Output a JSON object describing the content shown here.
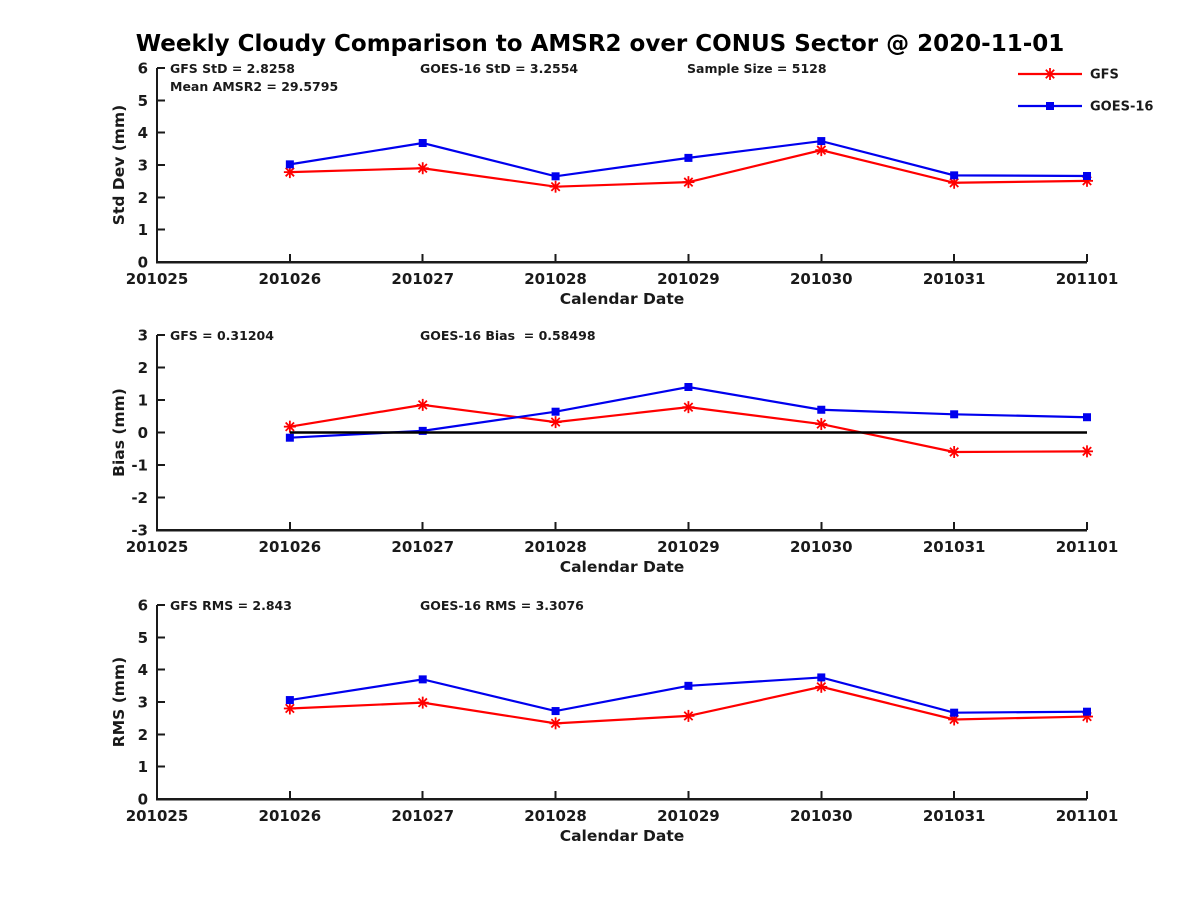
{
  "title": "Weekly Cloudy Comparison to AMSR2 over CONUS Sector @ 2020-11-01",
  "colors": {
    "gfs": "#ff0000",
    "goes16": "#0000ee",
    "axis": "#1a1a1a",
    "zero_line": "#000000"
  },
  "legend": {
    "items": [
      {
        "label": "GFS",
        "series": "gfs",
        "marker": "asterisk"
      },
      {
        "label": "GOES-16",
        "series": "goes16",
        "marker": "square"
      }
    ]
  },
  "x_axis": {
    "label": "Calendar Date",
    "tick_labels": [
      "201025",
      "201026",
      "201027",
      "201028",
      "201029",
      "201030",
      "201031",
      "201101"
    ]
  },
  "chart_data": [
    {
      "type": "line",
      "name": "std-dev",
      "ylabel": "Std Dev (mm)",
      "ylim": [
        0,
        6
      ],
      "yticks": [
        0,
        1,
        2,
        3,
        4,
        5,
        6
      ],
      "categories": [
        "201026",
        "201027",
        "201028",
        "201029",
        "201030",
        "201031",
        "201101"
      ],
      "annotations": [
        {
          "text": "GFS StD = 2.8258",
          "col": 0,
          "row": 0
        },
        {
          "text": "GOES-16 StD = 3.2554",
          "col": 1,
          "row": 0
        },
        {
          "text": "Sample Size = 5128",
          "col": 2,
          "row": 0
        },
        {
          "text": "Mean AMSR2 = 29.5795",
          "col": 0,
          "row": 1
        }
      ],
      "zero_line": false,
      "series": [
        {
          "name": "GFS",
          "key": "gfs",
          "marker": "asterisk",
          "values": [
            2.78,
            2.9,
            2.33,
            2.47,
            3.46,
            2.45,
            2.51
          ]
        },
        {
          "name": "GOES-16",
          "key": "goes16",
          "marker": "square",
          "values": [
            3.02,
            3.68,
            2.65,
            3.22,
            3.74,
            2.68,
            2.66
          ]
        }
      ]
    },
    {
      "type": "line",
      "name": "bias",
      "ylabel": "Bias (mm)",
      "ylim": [
        -3,
        3
      ],
      "yticks": [
        -3,
        -2,
        -1,
        0,
        1,
        2,
        3
      ],
      "categories": [
        "201026",
        "201027",
        "201028",
        "201029",
        "201030",
        "201031",
        "201101"
      ],
      "annotations": [
        {
          "text": "GFS = 0.31204",
          "col": 0,
          "row": 0
        },
        {
          "text": "GOES-16 Bias  = 0.58498",
          "col": 1,
          "row": 0
        }
      ],
      "zero_line": true,
      "series": [
        {
          "name": "GFS",
          "key": "gfs",
          "marker": "asterisk",
          "values": [
            0.18,
            0.85,
            0.32,
            0.78,
            0.26,
            -0.6,
            -0.58
          ]
        },
        {
          "name": "GOES-16",
          "key": "goes16",
          "marker": "square",
          "values": [
            -0.16,
            0.05,
            0.64,
            1.4,
            0.7,
            0.56,
            0.47
          ]
        }
      ]
    },
    {
      "type": "line",
      "name": "rms",
      "ylabel": "RMS (mm)",
      "ylim": [
        0,
        6
      ],
      "yticks": [
        0,
        1,
        2,
        3,
        4,
        5,
        6
      ],
      "categories": [
        "201026",
        "201027",
        "201028",
        "201029",
        "201030",
        "201031",
        "201101"
      ],
      "annotations": [
        {
          "text": "GFS RMS = 2.843",
          "col": 0,
          "row": 0
        },
        {
          "text": "GOES-16 RMS = 3.3076",
          "col": 1,
          "row": 0
        }
      ],
      "zero_line": false,
      "series": [
        {
          "name": "GFS",
          "key": "gfs",
          "marker": "asterisk",
          "values": [
            2.8,
            2.98,
            2.34,
            2.57,
            3.47,
            2.46,
            2.55
          ]
        },
        {
          "name": "GOES-16",
          "key": "goes16",
          "marker": "square",
          "values": [
            3.06,
            3.7,
            2.72,
            3.5,
            3.76,
            2.67,
            2.7
          ]
        }
      ]
    }
  ]
}
